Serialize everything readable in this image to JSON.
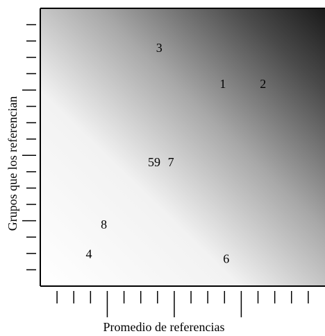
{
  "chart_data": {
    "type": "scatter",
    "xlabel": "Promedio de referencias",
    "ylabel": "Grupos que los referencian",
    "grid": false,
    "background": {
      "type": "gradient",
      "description": "white at bottom-left to dark gray/black at top-right",
      "colors": [
        "#ffffff",
        "#1a1a1a"
      ]
    },
    "points": [
      {
        "label": "1",
        "x": 10.9,
        "y": 11.3
      },
      {
        "label": "2",
        "x": 13.3,
        "y": 11.3
      },
      {
        "label": "3",
        "x": 7.1,
        "y": 13.5
      },
      {
        "label": "59",
        "x": 6.8,
        "y": 6.5
      },
      {
        "label": "7",
        "x": 7.8,
        "y": 6.5
      },
      {
        "label": "8",
        "x": 3.8,
        "y": 2.7
      },
      {
        "label": "4",
        "x": 2.9,
        "y": 0.9
      },
      {
        "label": "6",
        "x": 11.1,
        "y": 0.6
      }
    ],
    "xlim": [
      0,
      17
    ],
    "ylim": [
      -1,
      16
    ],
    "x_minor_ticks": [
      1,
      2,
      3,
      4,
      5,
      6,
      7,
      8,
      9,
      10,
      11,
      12,
      13,
      14,
      15,
      16
    ],
    "x_major_ticks": [
      4,
      8,
      12
    ],
    "y_minor_ticks": [
      0,
      1,
      2,
      3,
      4,
      5,
      6,
      7,
      8,
      9,
      10,
      11,
      12,
      13,
      14,
      15
    ],
    "y_major_ticks": [
      3,
      7,
      11
    ]
  }
}
